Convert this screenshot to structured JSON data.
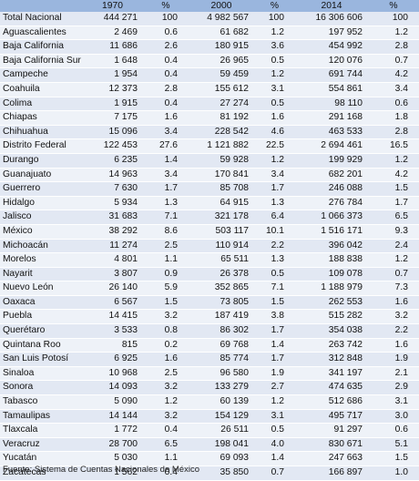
{
  "table": {
    "headers": [
      "",
      "1970",
      "%",
      "2000",
      "%",
      "2014",
      "%"
    ],
    "rows": [
      [
        "Total Nacional",
        "444 271",
        "100",
        "4 982 567",
        "100",
        "16 306 606",
        "100"
      ],
      [
        "Aguascalientes",
        "2 469",
        "0.6",
        "61 682",
        "1.2",
        "197 952",
        "1.2"
      ],
      [
        "Baja California",
        "11 686",
        "2.6",
        "180 915",
        "3.6",
        "454 992",
        "2.8"
      ],
      [
        "Baja California Sur",
        "1 648",
        "0.4",
        "26 965",
        "0.5",
        "120 076",
        "0.7"
      ],
      [
        "Campeche",
        "1 954",
        "0.4",
        "59 459",
        "1.2",
        "691 744",
        "4.2"
      ],
      [
        "Coahuila",
        "12 373",
        "2.8",
        "155 612",
        "3.1",
        "554 861",
        "3.4"
      ],
      [
        "Colima",
        "1 915",
        "0.4",
        "27 274",
        "0.5",
        "98 110",
        "0.6"
      ],
      [
        "Chiapas",
        "7 175",
        "1.6",
        "81 192",
        "1.6",
        "291 168",
        "1.8"
      ],
      [
        "Chihuahua",
        "15 096",
        "3.4",
        "228 542",
        "4.6",
        "463 533",
        "2.8"
      ],
      [
        "Distrito Federal",
        "122 453",
        "27.6",
        "1 121 882",
        "22.5",
        "2 694 461",
        "16.5"
      ],
      [
        "Durango",
        "6 235",
        "1.4",
        "59 928",
        "1.2",
        "199 929",
        "1.2"
      ],
      [
        "Guanajuato",
        "14 963",
        "3.4",
        "170 841",
        "3.4",
        "682 201",
        "4.2"
      ],
      [
        "Guerrero",
        "7 630",
        "1.7",
        "85 708",
        "1.7",
        "246 088",
        "1.5"
      ],
      [
        "Hidalgo",
        "5 934",
        "1.3",
        "64 915",
        "1.3",
        "276 784",
        "1.7"
      ],
      [
        "Jalisco",
        "31 683",
        "7.1",
        "321 178",
        "6.4",
        "1 066 373",
        "6.5"
      ],
      [
        "México",
        "38 292",
        "8.6",
        "503 117",
        "10.1",
        "1 516 171",
        "9.3"
      ],
      [
        "Michoacán",
        "11 274",
        "2.5",
        "110 914",
        "2.2",
        "396 042",
        "2.4"
      ],
      [
        "Morelos",
        "4 801",
        "1.1",
        "65 511",
        "1.3",
        "188 838",
        "1.2"
      ],
      [
        "Nayarit",
        "3 807",
        "0.9",
        "26 378",
        "0.5",
        "109 078",
        "0.7"
      ],
      [
        "Nuevo León",
        "26 140",
        "5.9",
        "352 865",
        "7.1",
        "1 188 979",
        "7.3"
      ],
      [
        "Oaxaca",
        "6 567",
        "1.5",
        "73 805",
        "1.5",
        "262 553",
        "1.6"
      ],
      [
        "Puebla",
        "14 415",
        "3.2",
        "187 419",
        "3.8",
        "515 282",
        "3.2"
      ],
      [
        "Querétaro",
        "3 533",
        "0.8",
        "86 302",
        "1.7",
        "354 038",
        "2.2"
      ],
      [
        "Quintana Roo",
        "815",
        "0.2",
        "69 768",
        "1.4",
        "263 742",
        "1.6"
      ],
      [
        "San Luis Potosí",
        "6 925",
        "1.6",
        "85 774",
        "1.7",
        "312 848",
        "1.9"
      ],
      [
        "Sinaloa",
        "10 968",
        "2.5",
        "96 580",
        "1.9",
        "341 197",
        "2.1"
      ],
      [
        "Sonora",
        "14 093",
        "3.2",
        "133 279",
        "2.7",
        "474 635",
        "2.9"
      ],
      [
        "Tabasco",
        "5 090",
        "1.2",
        "60 139",
        "1.2",
        "512 686",
        "3.1"
      ],
      [
        "Tamaulipas",
        "14 144",
        "3.2",
        "154 129",
        "3.1",
        "495 717",
        "3.0"
      ],
      [
        "Tlaxcala",
        "1 772",
        "0.4",
        "26 511",
        "0.5",
        "91 297",
        "0.6"
      ],
      [
        "Veracruz",
        "28 700",
        "6.5",
        "198 041",
        "4.0",
        "830 671",
        "5.1"
      ],
      [
        "Yucatán",
        "5 030",
        "1.1",
        "69 093",
        "1.4",
        "247 663",
        "1.5"
      ],
      [
        "Zacatecas",
        "1 562",
        "0.4",
        "35 850",
        "0.7",
        "166 897",
        "1.0"
      ]
    ]
  },
  "footnote": "Fuente: Sistema de Cuentas Nacionales de México"
}
